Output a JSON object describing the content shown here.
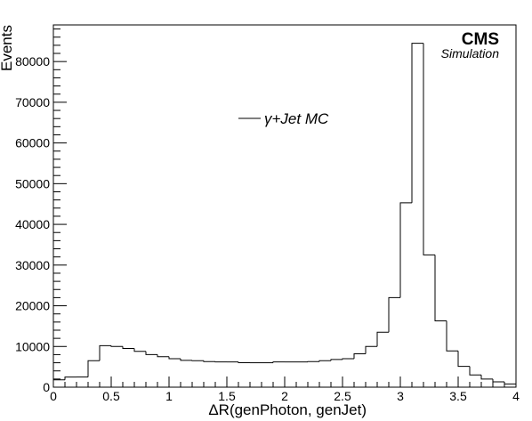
{
  "chart_data": {
    "type": "histogram",
    "xlabel": "ΔR(genPhoton, genJet)",
    "ylabel": "Events",
    "xlim": [
      0,
      4
    ],
    "ylim": [
      0,
      89000
    ],
    "x_major_ticks": [
      0,
      0.5,
      1,
      1.5,
      2,
      2.5,
      3,
      3.5,
      4
    ],
    "x_tick_labels": [
      "0",
      "0.5",
      "1",
      "1.5",
      "2",
      "2.5",
      "3",
      "3.5",
      "4"
    ],
    "y_major_ticks": [
      0,
      10000,
      20000,
      30000,
      40000,
      50000,
      60000,
      70000,
      80000
    ],
    "y_tick_labels": [
      "0",
      "10000",
      "20000",
      "30000",
      "40000",
      "50000",
      "60000",
      "70000",
      "80000"
    ],
    "experiment_label": "CMS",
    "sublabel": "Simulation",
    "legend": {
      "entry": "γ+Jet MC",
      "placement": "upper-center"
    },
    "series": [
      {
        "name": "γ+Jet MC",
        "bin_width": 0.1,
        "bin_edges_start": 0,
        "values": [
          1800,
          2500,
          2500,
          6500,
          10200,
          10000,
          9500,
          8800,
          8000,
          7500,
          7000,
          6600,
          6500,
          6300,
          6200,
          6200,
          6000,
          6000,
          6000,
          6200,
          6200,
          6200,
          6300,
          6500,
          6800,
          7000,
          8200,
          10000,
          13500,
          22000,
          45300,
          84500,
          32500,
          16300,
          8900,
          5100,
          3000,
          2000,
          1300,
          800
        ]
      }
    ]
  }
}
